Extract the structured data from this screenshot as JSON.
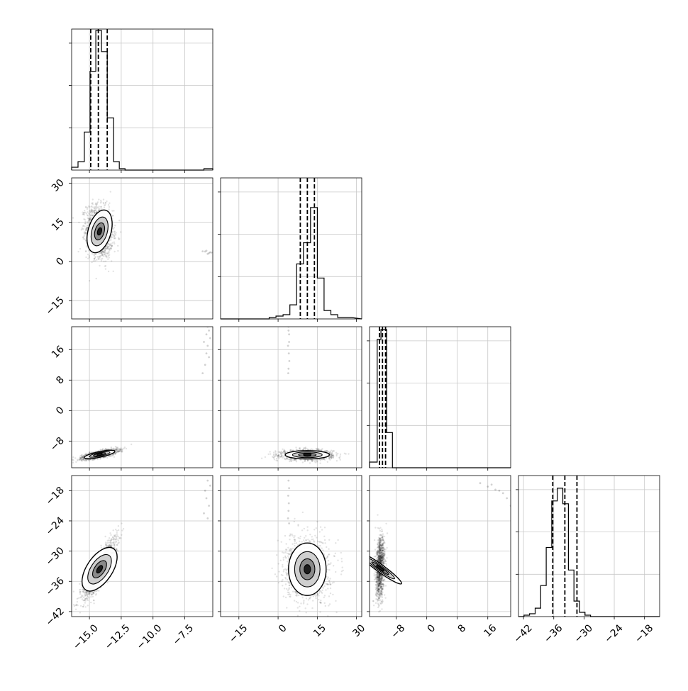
{
  "chart_data": {
    "type": "corner",
    "dims": 4,
    "grid": true,
    "axes": [
      {
        "ticks": [
          -15.0,
          -12.5,
          -10.0,
          -7.5
        ],
        "tick_labels": [
          "−15.0",
          "−12.5",
          "−10.0",
          "−7.5"
        ],
        "range": [
          -16.4,
          -5.3
        ]
      },
      {
        "ticks": [
          -15,
          0,
          15,
          30
        ],
        "tick_labels": [
          "−15",
          "0",
          "15",
          "30"
        ],
        "range": [
          -22,
          32
        ]
      },
      {
        "ticks": [
          -8,
          0,
          8,
          16
        ],
        "tick_labels": [
          "−8",
          "0",
          "8",
          "16"
        ],
        "range": [
          -15,
          22
        ]
      },
      {
        "ticks": [
          -42,
          -36,
          -30,
          -24,
          -18
        ],
        "tick_labels": [
          "−42",
          "−36",
          "−30",
          "−24",
          "−18"
        ],
        "range": [
          -43,
          -15
        ]
      }
    ],
    "quantiles": [
      [
        -14.9,
        -14.3,
        -13.6
      ],
      [
        8.5,
        11.2,
        13.9
      ],
      [
        -12.4,
        -11.6,
        -10.8
      ],
      [
        -36.2,
        -33.8,
        -31.4
      ]
    ],
    "histograms": [
      {
        "bin_edges": [
          -16.4,
          -15.9,
          -15.4,
          -14.95,
          -14.5,
          -14.05,
          -13.6,
          -13.1,
          -12.65,
          -12.2,
          -11.7,
          -11.2,
          -10.8,
          -10.3,
          -9.8,
          -9.3,
          -8.9,
          -8.4,
          -7.9,
          -7.4,
          -7.0,
          -6.5,
          -6.0,
          -5.5,
          -5.3
        ],
        "counts": [
          0.02,
          0.06,
          0.27,
          0.7,
          0.99,
          0.84,
          0.37,
          0.06,
          0.01,
          0,
          0,
          0,
          0,
          0,
          0,
          0,
          0,
          0,
          0,
          0,
          0,
          0,
          0.01,
          0.01
        ]
      },
      {
        "bin_edges": [
          -6,
          -3.4,
          -0.8,
          1.9,
          4.5,
          7.1,
          9.7,
          12.4,
          15,
          17.6,
          20.2,
          22.8,
          25.5,
          28.1
        ],
        "counts": [
          0.0,
          0.01,
          0.02,
          0.03,
          0.1,
          0.39,
          0.54,
          0.79,
          0.29,
          0.06,
          0.03,
          0.01,
          0.01
        ]
      },
      {
        "bin_edges": [
          -15,
          -13,
          -12,
          -10.5,
          -9,
          -7,
          -5,
          -3,
          0,
          5,
          10,
          15,
          22
        ],
        "counts": [
          0.04,
          0.91,
          0.98,
          0.25,
          0,
          0,
          0,
          0,
          0,
          0,
          0,
          0
        ]
      },
      {
        "bin_edges": [
          -43,
          -41.9,
          -40.8,
          -39.7,
          -38.6,
          -37.5,
          -36.4,
          -35.3,
          -34.2,
          -33.1,
          -32.0,
          -30.9,
          -29.8,
          -28.7,
          -27.6,
          -26.5,
          -25.4,
          -24.3,
          -23.2,
          -22.1,
          -21.0
        ],
        "counts": [
          0,
          0.01,
          0.02,
          0.06,
          0.22,
          0.49,
          0.82,
          0.91,
          0.8,
          0.33,
          0.11,
          0.03,
          0.01,
          0,
          0,
          0,
          0,
          0,
          0,
          0
        ]
      }
    ],
    "modes": [
      {
        "row": 1,
        "col": 0,
        "cx": -14.2,
        "cy": 11.5,
        "sx": 0.45,
        "sy": 4.2,
        "rho": -0.15,
        "n": 1600
      },
      {
        "row": 2,
        "col": 0,
        "cx": -14.2,
        "cy": -11.5,
        "sx": 0.6,
        "sy": 0.55,
        "rho": 0.75,
        "n": 1400
      },
      {
        "row": 2,
        "col": 1,
        "cx": 11.2,
        "cy": -11.6,
        "sx": 4.2,
        "sy": 0.55,
        "rho": 0,
        "n": 1400
      },
      {
        "row": 3,
        "col": 0,
        "cx": -14.2,
        "cy": -33.6,
        "sx": 0.55,
        "sy": 2.4,
        "rho": 0.85,
        "n": 1600
      },
      {
        "row": 3,
        "col": 1,
        "cx": 11.2,
        "cy": -33.6,
        "sx": 3.6,
        "sy": 2.6,
        "rho": 0,
        "n": 1400
      },
      {
        "row": 3,
        "col": 2,
        "cx": -12.2,
        "cy": -33.4,
        "sx": 0.5,
        "sy": 2.6,
        "rho": 0.2,
        "n": 1200
      }
    ],
    "outliers": [
      {
        "row": 1,
        "col": 0,
        "points": [
          [
            -5.9,
            3.8
          ],
          [
            -5.6,
            3.2
          ],
          [
            -5.8,
            4.1
          ],
          [
            -5.5,
            3.5
          ],
          [
            -5.7,
            2.9
          ],
          [
            -6.1,
            3.9
          ],
          [
            -5.4,
            3.4
          ]
        ]
      },
      {
        "row": 2,
        "col": 0,
        "points": [
          [
            -5.8,
            20
          ],
          [
            -5.7,
            17
          ],
          [
            -5.6,
            14
          ],
          [
            -5.9,
            12
          ],
          [
            -5.5,
            19
          ],
          [
            -6.0,
            18
          ],
          [
            -5.7,
            22
          ],
          [
            -5.8,
            15
          ],
          [
            -6.1,
            9.8
          ],
          [
            -5.6,
            21
          ]
        ]
      },
      {
        "row": 2,
        "col": 1,
        "points": [
          [
            4.0,
            22
          ],
          [
            4.2,
            20
          ],
          [
            3.8,
            17
          ],
          [
            4.1,
            15
          ],
          [
            4.3,
            13
          ],
          [
            4.0,
            11
          ],
          [
            3.9,
            9.8
          ],
          [
            4.2,
            18
          ],
          [
            4.0,
            21
          ]
        ]
      },
      {
        "row": 3,
        "col": 0,
        "points": [
          [
            -5.7,
            -16
          ],
          [
            -5.9,
            -18
          ],
          [
            -5.8,
            -19.5
          ],
          [
            -5.6,
            -21
          ],
          [
            -6.0,
            -22.5
          ],
          [
            -5.7,
            -23.5
          ],
          [
            -5.5,
            -17
          ]
        ]
      },
      {
        "row": 3,
        "col": 1,
        "points": [
          [
            4.0,
            -16
          ],
          [
            4.2,
            -17.5
          ],
          [
            3.9,
            -19
          ],
          [
            4.1,
            -20.5
          ],
          [
            4.0,
            -22
          ],
          [
            3.8,
            -23.5
          ],
          [
            4.2,
            -24.5
          ]
        ]
      },
      {
        "row": 3,
        "col": 2,
        "points": [
          [
            14,
            -16.5
          ],
          [
            16,
            -17.2
          ],
          [
            18,
            -17.8
          ],
          [
            17,
            -16.8
          ],
          [
            20,
            -18.5
          ],
          [
            21,
            -19.5
          ],
          [
            19,
            -18
          ],
          [
            22,
            -21
          ]
        ]
      }
    ]
  }
}
